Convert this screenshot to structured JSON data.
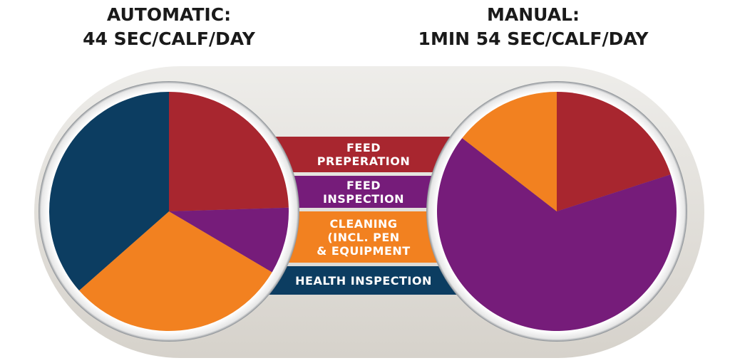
{
  "chart_data": [
    {
      "type": "pie",
      "title_lines": [
        "AUTOMATIC:",
        "44 SEC/CALF/DAY"
      ],
      "categories": [
        "FEED PREPERATION",
        "FEED INSPECTION",
        "CLEANING (INCL. PEN & EQUIPMENT",
        "HEALTH INSPECTION"
      ],
      "values": [
        24.5,
        9,
        30,
        36.5
      ],
      "unit": "percent",
      "start": "12 o'clock, clockwise"
    },
    {
      "type": "pie",
      "title_lines": [
        "MANUAL:",
        "1MIN 54 SEC/CALF/DAY"
      ],
      "categories": [
        "FEED PREPERATION",
        "FEED INSPECTION",
        "CLEANING (INCL. PEN & EQUIPMENT",
        "HEALTH INSPECTION"
      ],
      "values": [
        20,
        65.5,
        14.5,
        0
      ],
      "unit": "percent",
      "start": "12 o'clock, clockwise"
    }
  ],
  "legend": [
    {
      "lines": [
        "FEED",
        "PREPERATION"
      ],
      "color": "#A8262F"
    },
    {
      "lines": [
        "FEED",
        "INSPECTION"
      ],
      "color": "#761C7A"
    },
    {
      "lines": [
        "CLEANING",
        "(INCL. PEN",
        "& EQUIPMENT"
      ],
      "color": "#F28120"
    },
    {
      "lines": [
        "HEALTH INSPECTION"
      ],
      "color": "#0C3D61"
    }
  ],
  "colors": {
    "background_capsule": "#DCD8D2",
    "ring": "#F4F4F4"
  }
}
